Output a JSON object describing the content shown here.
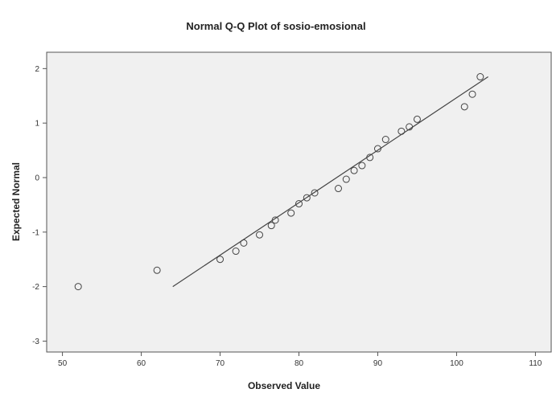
{
  "chart_data": {
    "type": "scatter",
    "title": "Normal Q-Q Plot of sosio-emosional",
    "xlabel": "Observed Value",
    "ylabel": "Expected Normal",
    "xlim": [
      48,
      112
    ],
    "ylim": [
      -3.2,
      2.3
    ],
    "xticks": [
      50,
      60,
      70,
      80,
      90,
      100,
      110
    ],
    "yticks": [
      -3,
      -2,
      -1,
      0,
      1,
      2
    ],
    "grid": false,
    "colors": {
      "plot_background": "#f0f0f0",
      "marker": "#444444",
      "line": "#444444",
      "frame": "#555555"
    },
    "reference_line": {
      "x": [
        64,
        104
      ],
      "y": [
        -2.0,
        1.85
      ]
    },
    "series": [
      {
        "marker": "open-circle",
        "x": [
          52,
          62,
          70,
          72,
          73,
          75,
          76.5,
          77,
          79,
          80,
          81,
          82,
          85,
          86,
          87,
          88,
          89,
          90,
          91,
          93,
          94,
          95,
          101,
          102,
          103
        ],
        "y": [
          -2.0,
          -1.7,
          -1.5,
          -1.35,
          -1.2,
          -1.05,
          -0.88,
          -0.78,
          -0.65,
          -0.48,
          -0.37,
          -0.28,
          -0.2,
          -0.03,
          0.13,
          0.22,
          0.37,
          0.53,
          0.7,
          0.85,
          0.93,
          1.07,
          1.3,
          1.53,
          1.85
        ]
      }
    ]
  }
}
